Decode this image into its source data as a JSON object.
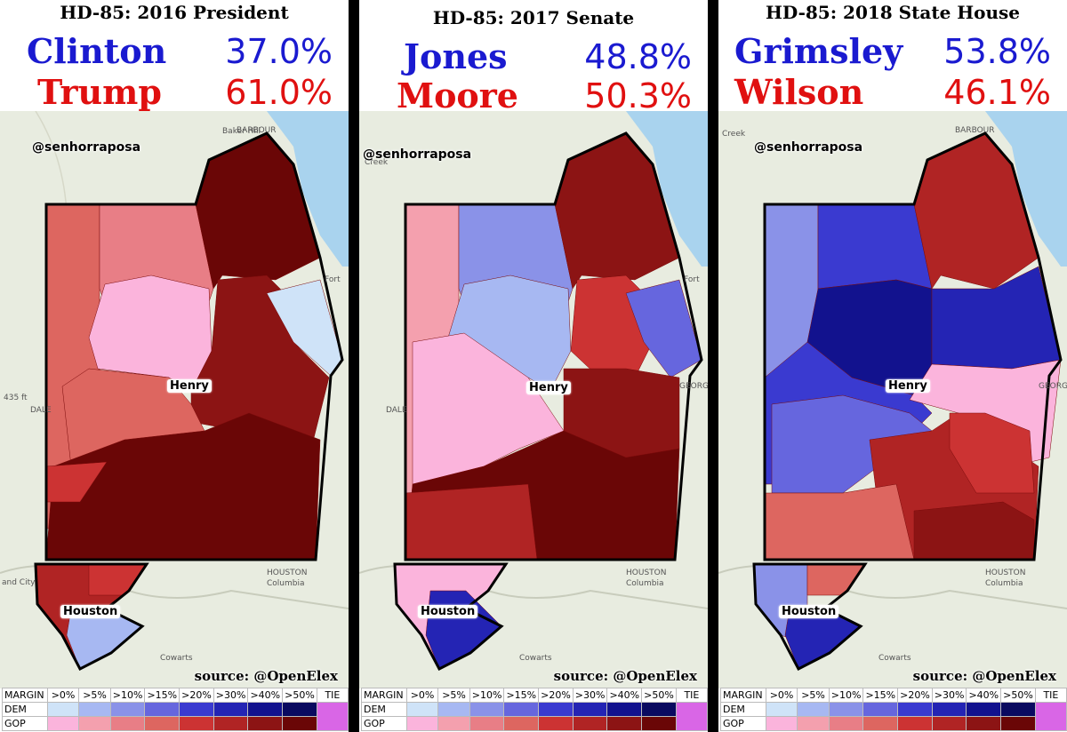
{
  "handle": "@senhorraposa",
  "source": "source: @OpenElex",
  "panels": [
    {
      "title": "HD-85: 2016 President",
      "dem": {
        "name": "Clinton",
        "pct": "37.0%"
      },
      "gop": {
        "name": "Trump",
        "pct": "61.0%"
      }
    },
    {
      "title": "HD-85: 2017 Senate",
      "dem": {
        "name": "Jones",
        "pct": "48.8%"
      },
      "gop": {
        "name": "Moore",
        "pct": "50.3%"
      }
    },
    {
      "title": "HD-85: 2018 State House",
      "dem": {
        "name": "Grimsley",
        "pct": "53.8%"
      },
      "gop": {
        "name": "Wilson",
        "pct": "46.1%"
      }
    }
  ],
  "counties": {
    "henry": "Henry",
    "houston": "Houston"
  },
  "basemap": {
    "baker_hill": "Baker Hill",
    "barbour": "BARBOUR",
    "fort": "Fort",
    "georgia": "GEORGIA",
    "dale": "DALE",
    "houston": "HOUSTON",
    "columbia": "Columbia",
    "cowarts": "Cowarts",
    "land_city": "and City",
    "elev": "435 ft",
    "creek": "Creek"
  },
  "legend": {
    "margin_label": "MARGIN",
    "dem_label": "DEM",
    "gop_label": "GOP",
    "bins": [
      ">0%",
      ">5%",
      ">10%",
      ">15%",
      ">20%",
      ">30%",
      ">40%",
      ">50%"
    ],
    "tie_label": "TIE",
    "dem_colors": [
      "#cfe3f8",
      "#a7b8f2",
      "#8a92e8",
      "#6666de",
      "#3a3ad0",
      "#2424b4",
      "#12128e",
      "#0a0a60"
    ],
    "gop_colors": [
      "#fbb4dc",
      "#f4a0ae",
      "#e87e86",
      "#dd6660",
      "#cc3333",
      "#b02424",
      "#8c1414",
      "#6a0606"
    ],
    "tie_color": "#d966e6"
  },
  "colors": {
    "dem_text": "#1a1ad0",
    "gop_text": "#e01010",
    "basemap": "#e8ece0",
    "water": "#a9d3ee"
  }
}
